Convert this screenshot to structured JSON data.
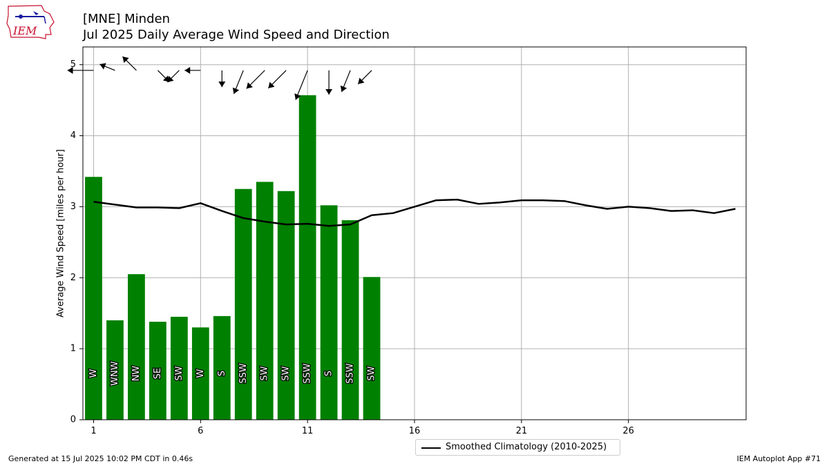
{
  "header": {
    "title_line1": "[MNE] Minden",
    "title_line2": "Jul 2025 Daily Average Wind Speed and Direction"
  },
  "logo": {
    "text": "IEM"
  },
  "footer": {
    "left": "Generated at 15 Jul 2025 10:02 PM CDT in 0.46s",
    "right": "IEM Autoplot App #71"
  },
  "legend": {
    "climo_label": "Smoothed Climatology (2010-2025)"
  },
  "colors": {
    "bar": "#008000",
    "climo": "#000000",
    "grid": "#b0b0b0",
    "arrow": "#000000"
  },
  "chart_data": {
    "type": "bar",
    "xlabel": "",
    "ylabel": "Average Wind Speed [miles per hour]",
    "xlim": [
      0.5,
      31.5
    ],
    "ylim": [
      0,
      5.25
    ],
    "xticks": [
      1,
      6,
      11,
      16,
      21,
      26
    ],
    "yticks": [
      0,
      1,
      2,
      3,
      4,
      5
    ],
    "grid": true,
    "legend_position": "below-center",
    "days": [
      1,
      2,
      3,
      4,
      5,
      6,
      7,
      8,
      9,
      10,
      11,
      12,
      13,
      14
    ],
    "speed": [
      3.42,
      1.4,
      2.05,
      1.38,
      1.45,
      1.3,
      1.46,
      3.25,
      3.35,
      3.22,
      4.57,
      3.02,
      2.81,
      2.01
    ],
    "direction_labels": [
      "W",
      "WNW",
      "NW",
      "SE",
      "SW",
      "W",
      "S",
      "SSW",
      "SW",
      "SW",
      "SSW",
      "S",
      "SSW",
      "SW"
    ],
    "direction_degrees": [
      270,
      292,
      315,
      135,
      225,
      270,
      180,
      202,
      225,
      225,
      202,
      180,
      202,
      225
    ],
    "climatology": {
      "name": "Smoothed Climatology (2010-2025)",
      "x": [
        1,
        2,
        3,
        4,
        5,
        6,
        7,
        8,
        9,
        10,
        11,
        12,
        13,
        14,
        15,
        16,
        17,
        18,
        19,
        20,
        21,
        22,
        23,
        24,
        25,
        26,
        27,
        28,
        29,
        30,
        31
      ],
      "values": [
        3.07,
        3.03,
        2.99,
        2.99,
        2.98,
        3.05,
        2.94,
        2.84,
        2.79,
        2.75,
        2.76,
        2.73,
        2.75,
        2.88,
        2.91,
        3.0,
        3.09,
        3.1,
        3.04,
        3.06,
        3.09,
        3.09,
        3.08,
        3.02,
        2.97,
        3.0,
        2.98,
        2.94,
        2.95,
        2.91,
        2.97
      ]
    }
  }
}
